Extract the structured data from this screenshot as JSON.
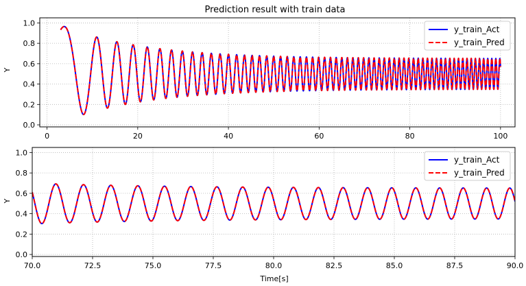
{
  "chart_data": [
    {
      "type": "line",
      "title": "Prediction result with train data",
      "xlabel": "",
      "ylabel": "Y",
      "xlim": [
        -1.6,
        103.2
      ],
      "ylim": [
        -0.02,
        1.05
      ],
      "xticks": [
        0,
        20,
        40,
        60,
        80,
        100
      ],
      "xtick_labels": [
        "0",
        "20",
        "40",
        "60",
        "80",
        "100"
      ],
      "yticks": [
        0.0,
        0.2,
        0.4,
        0.6,
        0.8,
        1.0
      ],
      "ytick_labels": [
        "0.0",
        "0.2",
        "0.4",
        "0.6",
        "0.8",
        "1.0"
      ],
      "grid": true,
      "legend_position": "top-right",
      "signal": {
        "form": "chirp",
        "t_start": 3.0,
        "t_end": 100.0,
        "phase_constant": 0.4,
        "phase_coefficient": 0.1,
        "phase_exponent": 1.8,
        "center": 0.5,
        "amplitude_start": 0.48,
        "amplitude_end": 0.15,
        "amplitude_decay_time": 18
      },
      "series": [
        {
          "name": "y_train_Act",
          "color": "#0000ff",
          "style": "solid"
        },
        {
          "name": "y_train_Pred",
          "color": "#ff0000",
          "style": "dashed"
        }
      ]
    },
    {
      "type": "line",
      "title": "",
      "xlabel": "Time[s]",
      "ylabel": "Y",
      "xlim": [
        70.0,
        90.0
      ],
      "ylim": [
        -0.02,
        1.05
      ],
      "xticks": [
        70.0,
        72.5,
        75.0,
        77.5,
        80.0,
        82.5,
        85.0,
        87.5,
        90.0
      ],
      "xtick_labels": [
        "70.0",
        "72.5",
        "75.0",
        "77.5",
        "80.0",
        "82.5",
        "85.0",
        "87.5",
        "90.0"
      ],
      "yticks": [
        0.0,
        0.2,
        0.4,
        0.6,
        0.8,
        1.0
      ],
      "ytick_labels": [
        "0.0",
        "0.2",
        "0.4",
        "0.6",
        "0.8",
        "1.0"
      ],
      "grid": true,
      "legend_position": "top-right",
      "signal": {
        "form": "chirp",
        "t_start": 70.0,
        "t_end": 90.0,
        "phase_constant": 0.4,
        "phase_coefficient": 0.1,
        "phase_exponent": 1.8,
        "center": 0.5,
        "amplitude_start": 0.2,
        "amplitude_end": 0.15,
        "amplitude_decay_time": 6
      },
      "series": [
        {
          "name": "y_train_Act",
          "color": "#0000ff",
          "style": "solid"
        },
        {
          "name": "y_train_Pred",
          "color": "#ff0000",
          "style": "dashed"
        }
      ]
    }
  ]
}
